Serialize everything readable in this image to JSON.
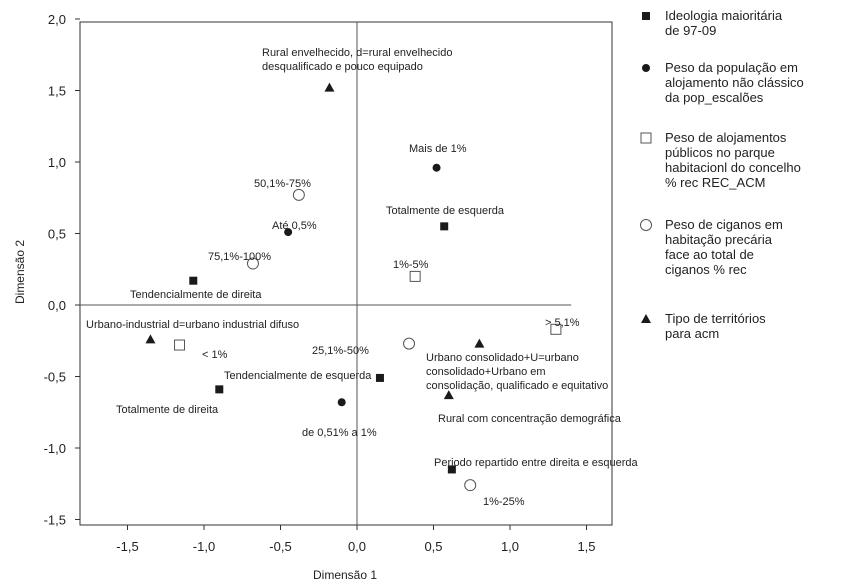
{
  "chart_data": {
    "type": "scatter",
    "xlabel": "Dimensão 1",
    "ylabel": "Dimensão 2",
    "xlim": [
      -1.9,
      2.0
    ],
    "ylim": [
      -1.5,
      2.0
    ],
    "x_ticks": [
      "-1,5",
      "-1,0",
      "-0,5",
      "0,0",
      "0,5",
      "1,0",
      "1,5"
    ],
    "y_ticks": [
      "2,0",
      "1,5",
      "1,0",
      "0,5",
      "0,0",
      "-0,5",
      "-1,0",
      "-1,5"
    ],
    "grid": false,
    "legend_position": "right",
    "series": [
      {
        "name": "Ideologia maioritária de 97-09",
        "marker": "square",
        "points": [
          {
            "x": -1.07,
            "y": 0.17,
            "label": "Tendencialmente de direita"
          },
          {
            "x": 0.57,
            "y": 0.55,
            "label": "Totalmente de esquerda"
          },
          {
            "x": -0.9,
            "y": -0.59,
            "label": "Totalmente de direita"
          },
          {
            "x": 0.15,
            "y": -0.51,
            "label": "Tendencialmente de esquerda"
          },
          {
            "x": 0.62,
            "y": -1.15,
            "label": "Periodo repartido entre direita e esquerda"
          }
        ]
      },
      {
        "name": "Peso da população em alojamento não clássico da pop_escalões",
        "marker": "circle",
        "points": [
          {
            "x": 0.52,
            "y": 0.96,
            "label": "Mais de 1%"
          },
          {
            "x": -0.45,
            "y": 0.51,
            "label": "Até 0,5%"
          },
          {
            "x": -0.1,
            "y": -0.68,
            "label": "de 0,51% a 1%"
          }
        ]
      },
      {
        "name": "Peso de alojamentos públicos no parque habitacionl do concelho % rec REC_ACM",
        "marker": "open-square",
        "points": [
          {
            "x": 0.38,
            "y": 0.2,
            "label": "1%-5%"
          },
          {
            "x": 1.3,
            "y": -0.17,
            "label": "> 5,1%"
          },
          {
            "x": -1.16,
            "y": -0.28,
            "label": "< 1%"
          }
        ]
      },
      {
        "name": "Peso de ciganos em habitação precária face ao total de ciganos % rec",
        "marker": "open-circle",
        "points": [
          {
            "x": -0.38,
            "y": 0.77,
            "label": "50,1%-75%"
          },
          {
            "x": -0.68,
            "y": 0.29,
            "label": "75,1%-100%"
          },
          {
            "x": 0.34,
            "y": -0.27,
            "label": "25,1%-50%"
          },
          {
            "x": 0.74,
            "y": -1.26,
            "label": "1%-25%"
          }
        ]
      },
      {
        "name": "Tipo de territórios para acm",
        "marker": "triangle",
        "points": [
          {
            "x": -0.18,
            "y": 1.52,
            "label": "Rural envelhecido, d=rural envelhecido desqualificado e pouco equipado"
          },
          {
            "x": -1.35,
            "y": -0.24,
            "label": "Urbano-industrial d=urbano industrial difuso"
          },
          {
            "x": 0.8,
            "y": -0.27,
            "label": "Urbano consolidado+U=urbano consolidado+Urbano em consolidação, qualificado e equitativo"
          },
          {
            "x": 0.6,
            "y": -0.63,
            "label": "Rural com concentração demográfica"
          }
        ]
      }
    ],
    "legend": [
      {
        "marker": "square",
        "lines": [
          "Ideologia maioritária",
          "de 97-09"
        ]
      },
      {
        "marker": "circle",
        "lines": [
          "Peso da população em",
          "alojamento não clássico",
          "da pop_escalões"
        ]
      },
      {
        "marker": "open-square",
        "lines": [
          "Peso de alojamentos",
          "públicos no parque",
          "habitacionl do concelho",
          "% rec REC_ACM"
        ]
      },
      {
        "marker": "open-circle",
        "lines": [
          "Peso de ciganos em",
          "habitação precária",
          "face ao total de",
          "ciganos % rec"
        ]
      },
      {
        "marker": "triangle",
        "lines": [
          "Tipo de territórios",
          "para acm"
        ]
      }
    ]
  }
}
